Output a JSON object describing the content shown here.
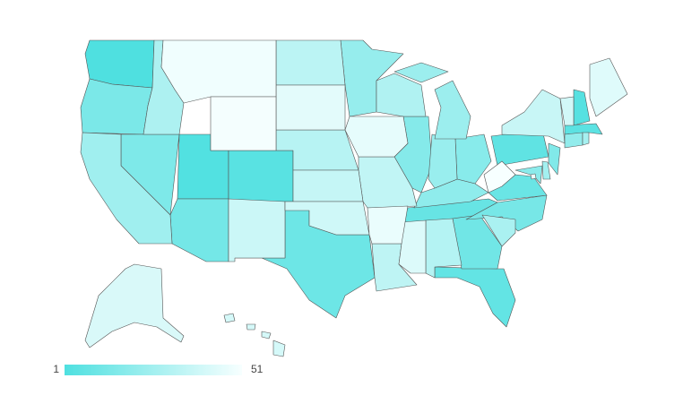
{
  "chart_data": {
    "type": "choropleth",
    "values": [
      1,
      2,
      3,
      4,
      5,
      6,
      7,
      8,
      9,
      10,
      11,
      12,
      13,
      14,
      15,
      16,
      17,
      18,
      19,
      20,
      21,
      22,
      23,
      24,
      25,
      26,
      27,
      28,
      29,
      30,
      31,
      32,
      33,
      34,
      35,
      36,
      37,
      38,
      39,
      40,
      41,
      42,
      43,
      44,
      45,
      46,
      47,
      48,
      49,
      50,
      51
    ],
    "colorscale": [
      "#4fe0e0",
      "#f7ffff"
    ],
    "zlim": [
      1,
      51
    ],
    "zticks": [
      1,
      51
    ]
  }
}
